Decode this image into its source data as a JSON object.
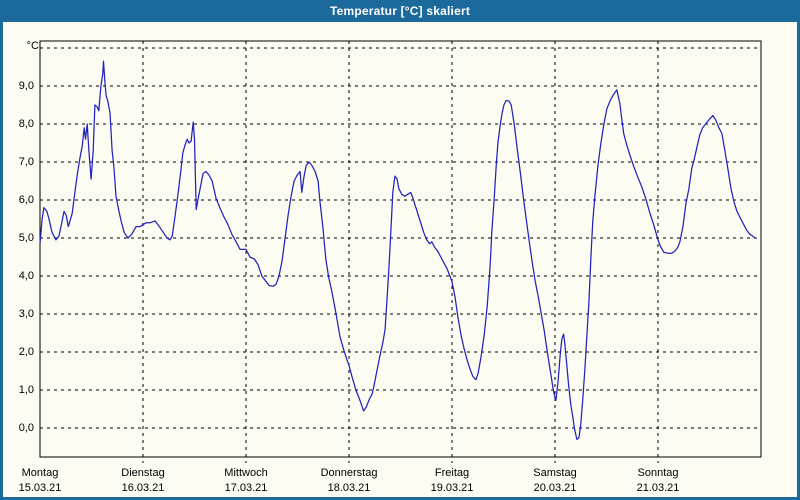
{
  "window": {
    "title": "Temperatur [°C] skaliert"
  },
  "colors": {
    "titlebar": "#1c6a9c",
    "plot_background": "#fdfcf2",
    "grid": "#000000",
    "curve": "#2222bd"
  },
  "chart_data": {
    "type": "line",
    "title": "Temperatur [°C] skaliert",
    "xlabel": "",
    "ylabel": "°C",
    "ylim": [
      -0.8,
      10.2
    ],
    "grid": "dashed",
    "legend": "none",
    "y_gridlines": [
      0,
      1,
      2,
      3,
      4,
      5,
      6,
      7,
      8,
      9,
      10
    ],
    "y_tick_labels": [
      "0,0",
      "1,0",
      "2,0",
      "3,0",
      "4,0",
      "5,0",
      "6,0",
      "7,0",
      "8,0",
      "9,0"
    ],
    "x_days": [
      {
        "weekday": "Montag",
        "date": "15.03.21"
      },
      {
        "weekday": "Dienstag",
        "date": "16.03.21"
      },
      {
        "weekday": "Mittwoch",
        "date": "17.03.21"
      },
      {
        "weekday": "Donnerstag",
        "date": "18.03.21"
      },
      {
        "weekday": "Freitag",
        "date": "19.03.21"
      },
      {
        "weekday": "Samstag",
        "date": "20.03.21"
      },
      {
        "weekday": "Sonntag",
        "date": "21.03.21"
      }
    ],
    "x_unit": "hours_since_monday_00",
    "series": [
      {
        "name": "Temperatur",
        "color": "#2222bd",
        "points": [
          [
            0,
            4.85
          ],
          [
            0.5,
            5.5
          ],
          [
            0.9,
            5.8
          ],
          [
            1.6,
            5.7
          ],
          [
            2.1,
            5.5
          ],
          [
            2.8,
            5.15
          ],
          [
            3.7,
            4.95
          ],
          [
            4.4,
            5.05
          ],
          [
            4.9,
            5.3
          ],
          [
            5.6,
            5.7
          ],
          [
            6.1,
            5.6
          ],
          [
            6.6,
            5.3
          ],
          [
            7,
            5.45
          ],
          [
            7.5,
            5.65
          ],
          [
            7.9,
            6
          ],
          [
            8.6,
            6.6
          ],
          [
            9.3,
            7.1
          ],
          [
            9.8,
            7.4
          ],
          [
            10.3,
            7.9
          ],
          [
            10.6,
            7.6
          ],
          [
            11,
            8
          ],
          [
            11.4,
            7.3
          ],
          [
            11.9,
            6.55
          ],
          [
            12.4,
            7.3
          ],
          [
            12.8,
            8.5
          ],
          [
            13.3,
            8.45
          ],
          [
            13.7,
            8.35
          ],
          [
            14.2,
            9
          ],
          [
            14.6,
            9.3
          ],
          [
            14.8,
            9.65
          ],
          [
            15.1,
            9.15
          ],
          [
            15.4,
            8.75
          ],
          [
            15.8,
            8.6
          ],
          [
            16.3,
            8.3
          ],
          [
            16.8,
            7.3
          ],
          [
            17.2,
            6.9
          ],
          [
            17.7,
            6.1
          ],
          [
            18.4,
            5.7
          ],
          [
            18.9,
            5.45
          ],
          [
            19.6,
            5.15
          ],
          [
            20.5,
            5
          ],
          [
            21.4,
            5.1
          ],
          [
            22.4,
            5.3
          ],
          [
            23.3,
            5.3
          ],
          [
            24,
            5.35
          ],
          [
            24.7,
            5.4
          ],
          [
            25.6,
            5.4
          ],
          [
            26.8,
            5.45
          ],
          [
            27.5,
            5.35
          ],
          [
            28.7,
            5.15
          ],
          [
            29.6,
            5
          ],
          [
            30.3,
            4.95
          ],
          [
            30.8,
            5.05
          ],
          [
            31.5,
            5.6
          ],
          [
            32.2,
            6.2
          ],
          [
            32.9,
            6.85
          ],
          [
            33.3,
            7.25
          ],
          [
            33.8,
            7.45
          ],
          [
            34.3,
            7.6
          ],
          [
            34.7,
            7.5
          ],
          [
            35.2,
            7.55
          ],
          [
            35.7,
            8.05
          ],
          [
            36,
            7.6
          ],
          [
            36.4,
            5.75
          ],
          [
            36.8,
            6
          ],
          [
            37.3,
            6.3
          ],
          [
            38,
            6.7
          ],
          [
            38.7,
            6.75
          ],
          [
            39.4,
            6.65
          ],
          [
            40.1,
            6.5
          ],
          [
            41,
            6.05
          ],
          [
            41.9,
            5.8
          ],
          [
            42.9,
            5.55
          ],
          [
            43.8,
            5.35
          ],
          [
            44.7,
            5.1
          ],
          [
            45.7,
            4.9
          ],
          [
            46.6,
            4.7
          ],
          [
            48,
            4.7
          ],
          [
            48.9,
            4.5
          ],
          [
            49.9,
            4.45
          ],
          [
            50.8,
            4.3
          ],
          [
            51.7,
            4
          ],
          [
            52.7,
            3.85
          ],
          [
            53.4,
            3.75
          ],
          [
            54.3,
            3.73
          ],
          [
            55,
            3.78
          ],
          [
            55.7,
            4
          ],
          [
            56.4,
            4.4
          ],
          [
            57.1,
            5
          ],
          [
            57.8,
            5.6
          ],
          [
            58.5,
            6.1
          ],
          [
            59.2,
            6.5
          ],
          [
            59.9,
            6.65
          ],
          [
            60.6,
            6.75
          ],
          [
            61,
            6.2
          ],
          [
            61.5,
            6.6
          ],
          [
            62,
            6.9
          ],
          [
            62.7,
            7
          ],
          [
            63.4,
            6.9
          ],
          [
            64.1,
            6.75
          ],
          [
            64.8,
            6.5
          ],
          [
            65.2,
            6
          ],
          [
            65.9,
            5.3
          ],
          [
            66.6,
            4.45
          ],
          [
            67.3,
            3.95
          ],
          [
            68,
            3.6
          ],
          [
            69,
            3
          ],
          [
            69.9,
            2.4
          ],
          [
            70.8,
            2.05
          ],
          [
            71.5,
            1.8
          ],
          [
            72,
            1.65
          ],
          [
            72.7,
            1.35
          ],
          [
            73.6,
            1
          ],
          [
            74.3,
            0.8
          ],
          [
            74.8,
            0.65
          ],
          [
            75.4,
            0.45
          ],
          [
            76,
            0.55
          ],
          [
            76.7,
            0.75
          ],
          [
            77.4,
            0.9
          ],
          [
            77.8,
            1.1
          ],
          [
            78.5,
            1.5
          ],
          [
            79.2,
            1.9
          ],
          [
            79.9,
            2.25
          ],
          [
            80.4,
            2.6
          ],
          [
            80.8,
            3.3
          ],
          [
            81.3,
            4.2
          ],
          [
            81.8,
            5.3
          ],
          [
            82.2,
            6.2
          ],
          [
            82.7,
            6.63
          ],
          [
            83.2,
            6.55
          ],
          [
            83.6,
            6.3
          ],
          [
            84.3,
            6.15
          ],
          [
            85,
            6.1
          ],
          [
            85.7,
            6.15
          ],
          [
            86.4,
            6.2
          ],
          [
            86.9,
            6.05
          ],
          [
            87.3,
            5.9
          ],
          [
            88,
            5.65
          ],
          [
            88.7,
            5.4
          ],
          [
            89.4,
            5.15
          ],
          [
            90.1,
            4.95
          ],
          [
            90.8,
            4.85
          ],
          [
            91.3,
            4.9
          ],
          [
            92,
            4.75
          ],
          [
            92.7,
            4.65
          ],
          [
            93.4,
            4.5
          ],
          [
            94.1,
            4.35
          ],
          [
            94.8,
            4.2
          ],
          [
            95.5,
            4
          ],
          [
            96,
            3.85
          ],
          [
            96.7,
            3.45
          ],
          [
            97.4,
            2.9
          ],
          [
            98.1,
            2.45
          ],
          [
            98.8,
            2.1
          ],
          [
            99.5,
            1.8
          ],
          [
            100.2,
            1.55
          ],
          [
            100.9,
            1.35
          ],
          [
            101.6,
            1.27
          ],
          [
            102.1,
            1.45
          ],
          [
            102.8,
            1.9
          ],
          [
            103.5,
            2.45
          ],
          [
            104.2,
            3.2
          ],
          [
            104.9,
            4.3
          ],
          [
            105.3,
            5.2
          ],
          [
            105.8,
            6
          ],
          [
            106.3,
            6.9
          ],
          [
            106.7,
            7.5
          ],
          [
            107.2,
            7.95
          ],
          [
            107.7,
            8.3
          ],
          [
            108.1,
            8.5
          ],
          [
            108.6,
            8.62
          ],
          [
            109.3,
            8.6
          ],
          [
            109.8,
            8.5
          ],
          [
            110.5,
            8
          ],
          [
            111.2,
            7.35
          ],
          [
            111.9,
            6.75
          ],
          [
            112.6,
            6.1
          ],
          [
            113.3,
            5.5
          ],
          [
            114,
            4.9
          ],
          [
            114.7,
            4.35
          ],
          [
            115.4,
            3.85
          ],
          [
            116.1,
            3.45
          ],
          [
            116.8,
            3
          ],
          [
            117.5,
            2.55
          ],
          [
            118.2,
            2
          ],
          [
            118.9,
            1.5
          ],
          [
            119.6,
            1
          ],
          [
            120,
            0.8
          ],
          [
            120.2,
            0.73
          ],
          [
            120.7,
            1.2
          ],
          [
            121.2,
            1.9
          ],
          [
            121.6,
            2.35
          ],
          [
            122,
            2.47
          ],
          [
            122.3,
            2.2
          ],
          [
            122.8,
            1.6
          ],
          [
            123.2,
            1.1
          ],
          [
            123.7,
            0.6
          ],
          [
            124.2,
            0.25
          ],
          [
            124.6,
            -0.05
          ],
          [
            125.1,
            -0.3
          ],
          [
            125.6,
            -0.25
          ],
          [
            126,
            0.1
          ],
          [
            126.5,
            0.8
          ],
          [
            127,
            1.6
          ],
          [
            127.4,
            2.4
          ],
          [
            127.9,
            3.3
          ],
          [
            128.4,
            4.6
          ],
          [
            128.8,
            5.45
          ],
          [
            129.3,
            6.1
          ],
          [
            130,
            6.9
          ],
          [
            130.7,
            7.5
          ],
          [
            131.4,
            8
          ],
          [
            132.1,
            8.4
          ],
          [
            132.8,
            8.6
          ],
          [
            133.5,
            8.75
          ],
          [
            134.4,
            8.9
          ],
          [
            135.1,
            8.55
          ],
          [
            135.6,
            8.1
          ],
          [
            136,
            7.75
          ],
          [
            136.7,
            7.45
          ],
          [
            137.4,
            7.2
          ],
          [
            138.3,
            6.9
          ],
          [
            139.3,
            6.6
          ],
          [
            140.2,
            6.35
          ],
          [
            141.1,
            6.05
          ],
          [
            142,
            5.7
          ],
          [
            143,
            5.35
          ],
          [
            144,
            4.95
          ],
          [
            144.7,
            4.75
          ],
          [
            145.4,
            4.62
          ],
          [
            146.3,
            4.6
          ],
          [
            147.2,
            4.6
          ],
          [
            147.9,
            4.65
          ],
          [
            148.6,
            4.75
          ],
          [
            149.1,
            4.9
          ],
          [
            149.8,
            5.3
          ],
          [
            150.5,
            5.9
          ],
          [
            151.2,
            6.3
          ],
          [
            151.9,
            6.85
          ],
          [
            152.3,
            7
          ],
          [
            153,
            7.35
          ],
          [
            153.7,
            7.7
          ],
          [
            154.4,
            7.9
          ],
          [
            155.1,
            8
          ],
          [
            155.8,
            8.1
          ],
          [
            156.8,
            8.22
          ],
          [
            157.5,
            8.1
          ],
          [
            158.2,
            7.9
          ],
          [
            158.9,
            7.75
          ],
          [
            159.6,
            7.3
          ],
          [
            160.3,
            6.8
          ],
          [
            161,
            6.3
          ],
          [
            161.7,
            5.95
          ],
          [
            162.4,
            5.7
          ],
          [
            163.3,
            5.5
          ],
          [
            164,
            5.35
          ],
          [
            164.7,
            5.2
          ],
          [
            165.4,
            5.1
          ],
          [
            166.1,
            5.05
          ],
          [
            166.6,
            5
          ]
        ]
      }
    ]
  }
}
